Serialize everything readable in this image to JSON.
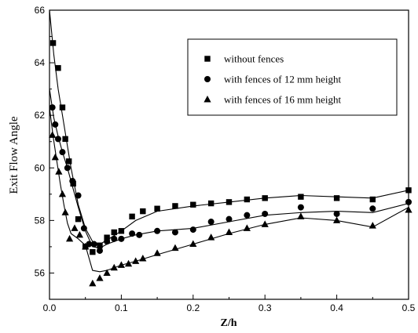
{
  "chart_data": {
    "type": "scatter",
    "title": "",
    "xlabel": "Z/h",
    "ylabel": "Exit Flow Angle",
    "xlim": [
      0,
      0.5
    ],
    "ylim": [
      55,
      66
    ],
    "xticks": [
      "0.0",
      "0.1",
      "0.2",
      "0.3",
      "0.4",
      "0.5"
    ],
    "yticks": [
      "56",
      "58",
      "60",
      "62",
      "64",
      "66"
    ],
    "grid": false,
    "legend_position": "top-right",
    "marker_color": "#000000",
    "series": [
      {
        "name": "without fences",
        "marker": "square",
        "points": [
          [
            0.005,
            64.75
          ],
          [
            0.012,
            63.8
          ],
          [
            0.018,
            62.3
          ],
          [
            0.022,
            61.1
          ],
          [
            0.027,
            60.25
          ],
          [
            0.033,
            59.4
          ],
          [
            0.04,
            58.05
          ],
          [
            0.05,
            57.0
          ],
          [
            0.06,
            56.8
          ],
          [
            0.07,
            57.05
          ],
          [
            0.08,
            57.35
          ],
          [
            0.09,
            57.55
          ],
          [
            0.1,
            57.6
          ],
          [
            0.115,
            58.15
          ],
          [
            0.13,
            58.35
          ],
          [
            0.15,
            58.45
          ],
          [
            0.175,
            58.55
          ],
          [
            0.2,
            58.6
          ],
          [
            0.225,
            58.65
          ],
          [
            0.25,
            58.7
          ],
          [
            0.275,
            58.8
          ],
          [
            0.3,
            58.85
          ],
          [
            0.35,
            58.9
          ],
          [
            0.4,
            58.85
          ],
          [
            0.45,
            58.8
          ],
          [
            0.5,
            59.15
          ]
        ],
        "fit": [
          [
            0.0,
            66.0
          ],
          [
            0.006,
            64.3
          ],
          [
            0.012,
            63.0
          ],
          [
            0.018,
            62.0
          ],
          [
            0.024,
            61.0
          ],
          [
            0.03,
            60.0
          ],
          [
            0.04,
            58.6
          ],
          [
            0.05,
            57.7
          ],
          [
            0.06,
            57.2
          ],
          [
            0.07,
            57.1
          ],
          [
            0.08,
            57.25
          ],
          [
            0.1,
            57.6
          ],
          [
            0.12,
            58.0
          ],
          [
            0.15,
            58.35
          ],
          [
            0.2,
            58.55
          ],
          [
            0.25,
            58.7
          ],
          [
            0.3,
            58.85
          ],
          [
            0.35,
            58.95
          ],
          [
            0.4,
            58.9
          ],
          [
            0.45,
            58.85
          ],
          [
            0.5,
            59.15
          ]
        ]
      },
      {
        "name": "with fences of 12 mm height",
        "marker": "circle",
        "points": [
          [
            0.004,
            62.3
          ],
          [
            0.008,
            61.65
          ],
          [
            0.012,
            61.1
          ],
          [
            0.018,
            60.6
          ],
          [
            0.025,
            60.0
          ],
          [
            0.032,
            59.5
          ],
          [
            0.04,
            58.95
          ],
          [
            0.048,
            57.7
          ],
          [
            0.055,
            57.1
          ],
          [
            0.062,
            57.1
          ],
          [
            0.07,
            56.85
          ],
          [
            0.08,
            57.2
          ],
          [
            0.09,
            57.3
          ],
          [
            0.1,
            57.3
          ],
          [
            0.115,
            57.5
          ],
          [
            0.125,
            57.45
          ],
          [
            0.15,
            57.6
          ],
          [
            0.175,
            57.55
          ],
          [
            0.2,
            57.65
          ],
          [
            0.225,
            57.95
          ],
          [
            0.25,
            58.05
          ],
          [
            0.275,
            58.2
          ],
          [
            0.3,
            58.25
          ],
          [
            0.35,
            58.5
          ],
          [
            0.4,
            58.25
          ],
          [
            0.45,
            58.45
          ],
          [
            0.5,
            58.7
          ]
        ],
        "fit": [
          [
            0.0,
            63.0
          ],
          [
            0.006,
            61.9
          ],
          [
            0.012,
            61.2
          ],
          [
            0.018,
            60.6
          ],
          [
            0.025,
            60.0
          ],
          [
            0.032,
            59.3
          ],
          [
            0.04,
            58.5
          ],
          [
            0.05,
            57.6
          ],
          [
            0.06,
            57.0
          ],
          [
            0.07,
            56.95
          ],
          [
            0.08,
            57.1
          ],
          [
            0.1,
            57.3
          ],
          [
            0.12,
            57.45
          ],
          [
            0.15,
            57.6
          ],
          [
            0.2,
            57.7
          ],
          [
            0.25,
            57.95
          ],
          [
            0.3,
            58.2
          ],
          [
            0.35,
            58.3
          ],
          [
            0.4,
            58.35
          ],
          [
            0.45,
            58.3
          ],
          [
            0.5,
            58.65
          ]
        ]
      },
      {
        "name": "with fences of 16 mm height",
        "marker": "triangle",
        "points": [
          [
            0.004,
            61.25
          ],
          [
            0.008,
            60.4
          ],
          [
            0.013,
            59.85
          ],
          [
            0.018,
            59.0
          ],
          [
            0.022,
            58.3
          ],
          [
            0.028,
            57.3
          ],
          [
            0.035,
            57.7
          ],
          [
            0.042,
            57.45
          ],
          [
            0.05,
            57.0
          ],
          [
            0.06,
            55.6
          ],
          [
            0.07,
            55.8
          ],
          [
            0.08,
            56.0
          ],
          [
            0.09,
            56.2
          ],
          [
            0.1,
            56.3
          ],
          [
            0.11,
            56.35
          ],
          [
            0.12,
            56.45
          ],
          [
            0.13,
            56.55
          ],
          [
            0.15,
            56.75
          ],
          [
            0.175,
            56.95
          ],
          [
            0.2,
            57.1
          ],
          [
            0.225,
            57.35
          ],
          [
            0.25,
            57.55
          ],
          [
            0.275,
            57.7
          ],
          [
            0.3,
            57.85
          ],
          [
            0.35,
            58.15
          ],
          [
            0.4,
            58.0
          ],
          [
            0.45,
            57.8
          ],
          [
            0.5,
            58.4
          ]
        ],
        "fit": [
          [
            0.0,
            62.3
          ],
          [
            0.005,
            61.2
          ],
          [
            0.01,
            60.3
          ],
          [
            0.015,
            59.4
          ],
          [
            0.02,
            58.6
          ],
          [
            0.025,
            57.9
          ],
          [
            0.03,
            57.5
          ],
          [
            0.04,
            57.3
          ],
          [
            0.05,
            57.05
          ],
          [
            0.06,
            56.1
          ],
          [
            0.07,
            56.05
          ],
          [
            0.08,
            56.1
          ],
          [
            0.1,
            56.3
          ],
          [
            0.12,
            56.45
          ],
          [
            0.15,
            56.7
          ],
          [
            0.2,
            57.1
          ],
          [
            0.25,
            57.5
          ],
          [
            0.3,
            57.85
          ],
          [
            0.35,
            58.1
          ],
          [
            0.4,
            58.0
          ],
          [
            0.45,
            57.75
          ],
          [
            0.5,
            58.5
          ]
        ]
      }
    ]
  }
}
